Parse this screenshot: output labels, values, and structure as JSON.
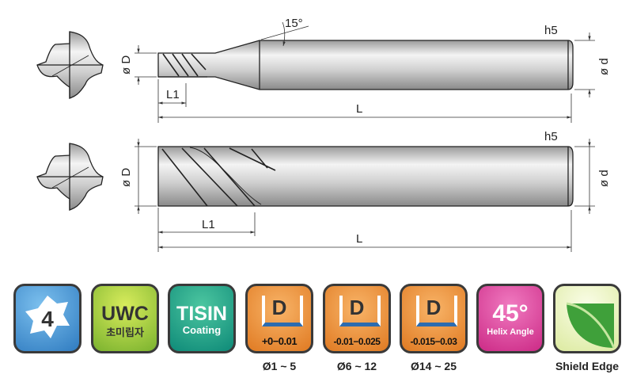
{
  "drawing": {
    "top": {
      "angle_label": "15°",
      "tolerance_label": "h5",
      "dia_cut_label": "ø D",
      "dia_shank_label": "ø d",
      "flute_len_label": "L1",
      "total_len_label": "L"
    },
    "bottom": {
      "tolerance_label": "h5",
      "dia_cut_label": "ø D",
      "dia_shank_label": "ø d",
      "flute_len_label": "L1",
      "total_len_label": "L"
    }
  },
  "badges": [
    {
      "icon": "four-flute-icon",
      "main": "4",
      "color": "#3f8fd0"
    },
    {
      "main": "UWC",
      "sub": "초미립자",
      "color": "#9ccc3c"
    },
    {
      "main": "TISIN",
      "sub": "Coating",
      "color": "#14a58a"
    },
    {
      "icon": "diameter-tolerance-icon",
      "main": "D",
      "sub": "+0−0.01",
      "caption": "Ø1 ~ 5",
      "color": "#ec8a33"
    },
    {
      "icon": "diameter-tolerance-icon",
      "main": "D",
      "sub": "-0.01−0.025",
      "caption": "Ø6 ~ 12",
      "color": "#ec8a33"
    },
    {
      "icon": "diameter-tolerance-icon",
      "main": "D",
      "sub": "-0.015−0.03",
      "caption": "Ø14 ~ 25",
      "color": "#ec8a33"
    },
    {
      "main": "45°",
      "sub": "Helix Angle",
      "color": "#d9388f"
    },
    {
      "icon": "leaf-icon",
      "caption": "Shield Edge",
      "color": "#eef5c8"
    }
  ]
}
